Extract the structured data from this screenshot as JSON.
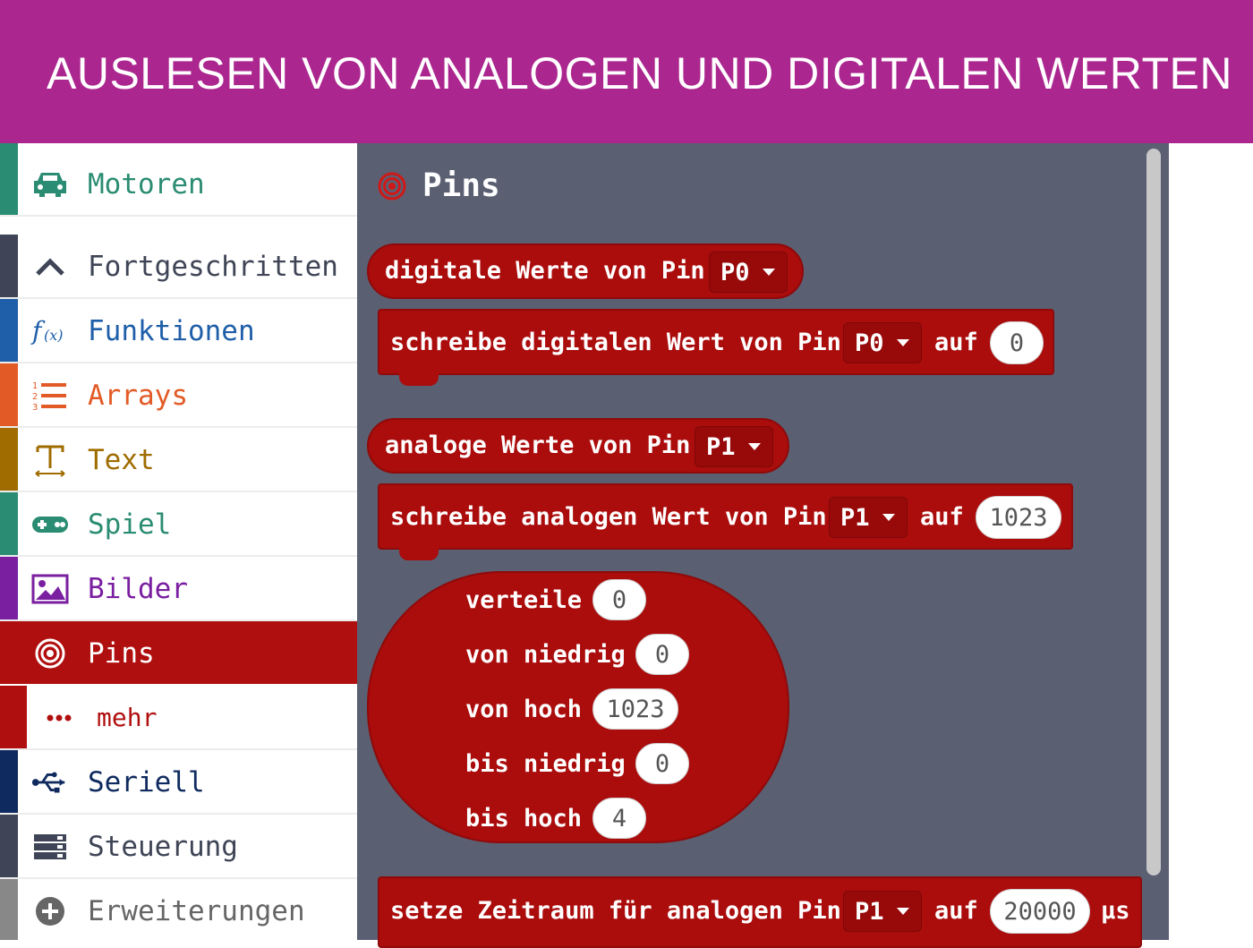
{
  "banner": {
    "title": "AUSLESEN VON ANALOGEN UND DIGITALEN WERTEN"
  },
  "colors": {
    "banner": "#ab278f",
    "pins_block": "#ab0c0c",
    "flyout_bg": "#5a5f72"
  },
  "toolbox": {
    "items": [
      {
        "label": "Motoren",
        "icon": "car-icon",
        "color": "#2a8c72"
      },
      {
        "label": "Fortgeschritten",
        "icon": "chevron-up-icon",
        "color": "#3f4556"
      },
      {
        "label": "Funktionen",
        "icon": "function-icon",
        "color": "#1f5ea8"
      },
      {
        "label": "Arrays",
        "icon": "list-icon",
        "color": "#e25b27"
      },
      {
        "label": "Text",
        "icon": "text-icon",
        "color": "#a06c00"
      },
      {
        "label": "Spiel",
        "icon": "gamepad-icon",
        "color": "#2a8c72"
      },
      {
        "label": "Bilder",
        "icon": "image-icon",
        "color": "#7a1fa0"
      },
      {
        "label": "Pins",
        "icon": "target-icon",
        "color": "#b00f0f"
      },
      {
        "label": "mehr",
        "icon": "more-dots-icon",
        "color": "#b00f0f"
      },
      {
        "label": "Seriell",
        "icon": "usb-icon",
        "color": "#0f2a5e"
      },
      {
        "label": "Steuerung",
        "icon": "server-icon",
        "color": "#3f4556"
      },
      {
        "label": "Erweiterungen",
        "icon": "plus-circle-icon",
        "color": "#666666"
      }
    ]
  },
  "flyout": {
    "title": "Pins",
    "digital_read": {
      "text": "digitale Werte von Pin",
      "pin": "P0"
    },
    "digital_write": {
      "text": "schreibe digitalen Wert von Pin",
      "pin": "P0",
      "to": "auf",
      "value": "0"
    },
    "analog_read": {
      "text": "analoge Werte von Pin",
      "pin": "P1"
    },
    "analog_write": {
      "text": "schreibe analogen Wert von Pin",
      "pin": "P1",
      "to": "auf",
      "value": "1023"
    },
    "map": {
      "rows": [
        {
          "label": "verteile",
          "value": "0"
        },
        {
          "label": "von niedrig",
          "value": "0"
        },
        {
          "label": "von hoch",
          "value": "1023"
        },
        {
          "label": "bis niedrig",
          "value": "0"
        },
        {
          "label": "bis hoch",
          "value": "4"
        }
      ]
    },
    "analog_period": {
      "text": "setze Zeitraum für analogen Pin",
      "pin": "P1",
      "to": "auf",
      "value": "20000",
      "unit": "µs"
    }
  }
}
